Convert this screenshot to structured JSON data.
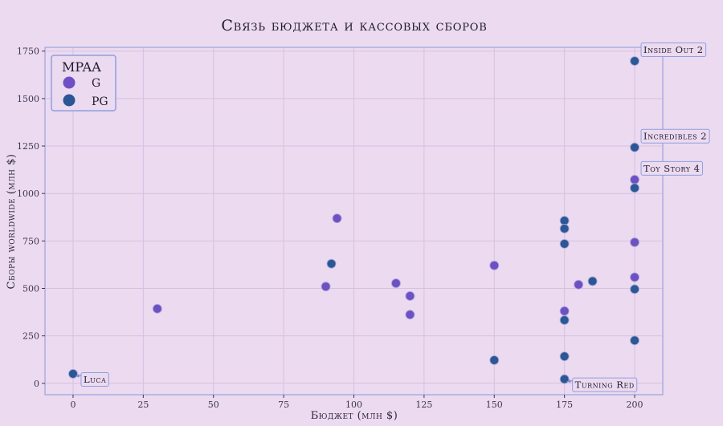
{
  "chart_data": {
    "type": "scatter",
    "title": "Связь бюджета и кассовых сборов",
    "xlabel": "Бюджет (млн $)",
    "ylabel": "Сборы worldwide (млн $)",
    "xlim": [
      -10,
      210
    ],
    "ylim": [
      -60,
      1770
    ],
    "xticks": [
      0,
      25,
      50,
      75,
      100,
      125,
      150,
      175,
      200
    ],
    "yticks": [
      0,
      250,
      500,
      750,
      1000,
      1250,
      1500,
      1750
    ],
    "grid": true,
    "legend": {
      "title": "MPAA",
      "placement": "top-left"
    },
    "series": [
      {
        "name": "G",
        "color": "#6f4fc4",
        "points": [
          {
            "x": 30,
            "y": 393
          },
          {
            "x": 90,
            "y": 510
          },
          {
            "x": 94,
            "y": 869
          },
          {
            "x": 115,
            "y": 527
          },
          {
            "x": 120,
            "y": 460
          },
          {
            "x": 120,
            "y": 362
          },
          {
            "x": 150,
            "y": 621
          },
          {
            "x": 175,
            "y": 381
          },
          {
            "x": 180,
            "y": 520
          },
          {
            "x": 200,
            "y": 743
          },
          {
            "x": 200,
            "y": 559
          },
          {
            "x": 200,
            "y": 1073
          }
        ]
      },
      {
        "name": "PG",
        "color": "#2b5794",
        "points": [
          {
            "x": 0,
            "y": 50
          },
          {
            "x": 92,
            "y": 630
          },
          {
            "x": 150,
            "y": 122
          },
          {
            "x": 175,
            "y": 857
          },
          {
            "x": 175,
            "y": 815
          },
          {
            "x": 175,
            "y": 735
          },
          {
            "x": 175,
            "y": 333
          },
          {
            "x": 175,
            "y": 142
          },
          {
            "x": 175,
            "y": 22
          },
          {
            "x": 185,
            "y": 538
          },
          {
            "x": 200,
            "y": 1698
          },
          {
            "x": 200,
            "y": 1243
          },
          {
            "x": 200,
            "y": 1029
          },
          {
            "x": 200,
            "y": 496
          },
          {
            "x": 200,
            "y": 226
          }
        ]
      }
    ],
    "annotations": [
      {
        "text": "Inside Out 2",
        "x": 200,
        "y": 1698,
        "side": "right",
        "arrow": false
      },
      {
        "text": "Incredibles 2",
        "x": 200,
        "y": 1243,
        "side": "right",
        "arrow": false
      },
      {
        "text": "Toy Story 4",
        "x": 200,
        "y": 1073,
        "side": "right",
        "arrow": false
      },
      {
        "text": "Luca",
        "x": 0,
        "y": 50,
        "side": "below-right",
        "arrow": true
      },
      {
        "text": "Turning Red",
        "x": 175,
        "y": 22,
        "side": "below-right",
        "arrow": true
      }
    ]
  }
}
